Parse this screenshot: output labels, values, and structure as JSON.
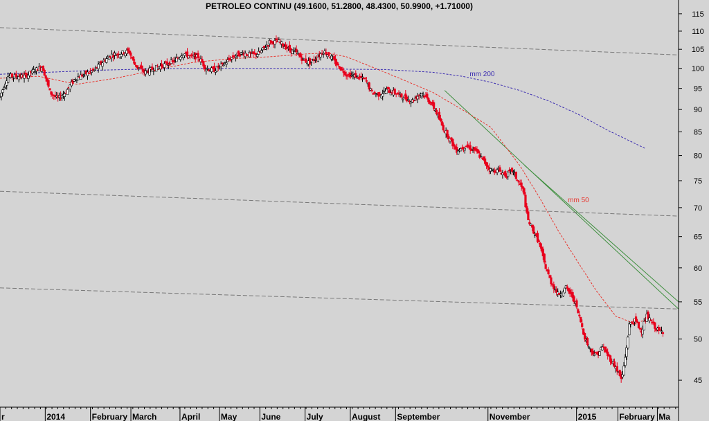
{
  "chart_data": {
    "type": "candlestick",
    "title": "PETROLEO CONTINU (49.1600, 51.2800, 48.4300, 50.9900, +1.71000)",
    "last_bar": {
      "open": 49.16,
      "high": 51.28,
      "low": 48.43,
      "close": 50.99,
      "change": 1.71
    },
    "scale": "log",
    "ylim": [
      42,
      116
    ],
    "yticks": [
      45,
      50,
      55,
      60,
      65,
      70,
      75,
      80,
      85,
      90,
      95,
      100,
      105,
      110,
      115
    ],
    "xlabels": [
      {
        "label": "r",
        "day": 0
      },
      {
        "label": "2014",
        "day": 47
      },
      {
        "label": "February",
        "day": 94
      },
      {
        "label": "March",
        "day": 136
      },
      {
        "label": "April",
        "day": 187
      },
      {
        "label": "May",
        "day": 228
      },
      {
        "label": "June",
        "day": 270
      },
      {
        "label": "July",
        "day": 317
      },
      {
        "label": "August",
        "day": 364
      },
      {
        "label": "September",
        "day": 411
      },
      {
        "label": "November",
        "day": 507
      },
      {
        "label": "2015",
        "day": 599
      },
      {
        "label": "February",
        "day": 642
      },
      {
        "label": "Ma",
        "day": 683
      }
    ],
    "price_path": [
      [
        0,
        93
      ],
      [
        8,
        98
      ],
      [
        16,
        98
      ],
      [
        26,
        98
      ],
      [
        36,
        99.5
      ],
      [
        44,
        100.5
      ],
      [
        52,
        94
      ],
      [
        60,
        92.5
      ],
      [
        68,
        94
      ],
      [
        78,
        97.5
      ],
      [
        88,
        98.5
      ],
      [
        98,
        99.5
      ],
      [
        108,
        102
      ],
      [
        116,
        103.5
      ],
      [
        126,
        104
      ],
      [
        134,
        104.5
      ],
      [
        140,
        101
      ],
      [
        150,
        99
      ],
      [
        160,
        100
      ],
      [
        172,
        101
      ],
      [
        182,
        102
      ],
      [
        190,
        104
      ],
      [
        198,
        103
      ],
      [
        206,
        103
      ],
      [
        214,
        100
      ],
      [
        222,
        99.5
      ],
      [
        232,
        101
      ],
      [
        242,
        103
      ],
      [
        252,
        104
      ],
      [
        262,
        103.5
      ],
      [
        270,
        104
      ],
      [
        280,
        107
      ],
      [
        290,
        107
      ],
      [
        300,
        105
      ],
      [
        308,
        104
      ],
      [
        316,
        102
      ],
      [
        322,
        101.5
      ],
      [
        330,
        103
      ],
      [
        336,
        104.5
      ],
      [
        342,
        103.5
      ],
      [
        350,
        101
      ],
      [
        360,
        98.5
      ],
      [
        370,
        98
      ],
      [
        380,
        97
      ],
      [
        386,
        94
      ],
      [
        394,
        93.5
      ],
      [
        402,
        94.5
      ],
      [
        410,
        94
      ],
      [
        418,
        93
      ],
      [
        428,
        92
      ],
      [
        438,
        94
      ],
      [
        446,
        92
      ],
      [
        452,
        90
      ],
      [
        460,
        86
      ],
      [
        466,
        84
      ],
      [
        474,
        81
      ],
      [
        484,
        82
      ],
      [
        494,
        81
      ],
      [
        502,
        79
      ],
      [
        510,
        77
      ],
      [
        518,
        77
      ],
      [
        526,
        76
      ],
      [
        532,
        77
      ],
      [
        538,
        75
      ],
      [
        544,
        73
      ],
      [
        548,
        68
      ],
      [
        554,
        66
      ],
      [
        560,
        64
      ],
      [
        566,
        60.5
      ],
      [
        572,
        58
      ],
      [
        580,
        56
      ],
      [
        588,
        57
      ],
      [
        596,
        55.5
      ],
      [
        604,
        52
      ],
      [
        608,
        50
      ],
      [
        614,
        48.5
      ],
      [
        620,
        48
      ],
      [
        626,
        49
      ],
      [
        634,
        47.5
      ],
      [
        640,
        46.5
      ],
      [
        646,
        45
      ],
      [
        650,
        48
      ],
      [
        654,
        52
      ],
      [
        660,
        52.5
      ],
      [
        666,
        51
      ],
      [
        672,
        53
      ],
      [
        678,
        52
      ],
      [
        684,
        51
      ],
      [
        690,
        51
      ]
    ],
    "series": [
      {
        "name": "mm 50",
        "color": "#e8352e",
        "x": [
          0,
          40,
          80,
          120,
          160,
          200,
          240,
          280,
          320,
          340,
          360,
          390,
          420,
          450,
          480,
          510,
          540,
          560,
          580,
          600,
          620,
          640,
          660,
          670
        ],
        "y": [
          97.5,
          98,
          96,
          97.5,
          99.5,
          101.5,
          102.5,
          103,
          103.8,
          104,
          103,
          100,
          97,
          94,
          90,
          86,
          78,
          72,
          66,
          61,
          56.5,
          53,
          52,
          52.5
        ]
      },
      {
        "name": "mm 200",
        "color": "#3a2bb0",
        "x": [
          0,
          50,
          100,
          150,
          200,
          250,
          300,
          350,
          400,
          450,
          480,
          510,
          540,
          570,
          600,
          630,
          670
        ],
        "y": [
          98.5,
          99,
          99.5,
          99.8,
          100,
          100,
          100,
          99.8,
          99.7,
          99,
          98,
          96.5,
          94.5,
          92,
          89,
          85.5,
          81.5
        ]
      }
    ],
    "trendlines": [
      {
        "color": "#3f8f3f",
        "x": [
          462,
          705
        ],
        "y": [
          94.5,
          54
        ]
      },
      {
        "color": "#3f8f3f",
        "x": [
          545,
          705
        ],
        "y": [
          78,
          55
        ]
      },
      {
        "color": "#777777",
        "style": "dashed",
        "x": [
          0,
          705
        ],
        "y": [
          111,
          103.5
        ]
      },
      {
        "color": "#777777",
        "style": "dashed",
        "x": [
          0,
          705
        ],
        "y": [
          73,
          68.5
        ]
      },
      {
        "color": "#777777",
        "style": "dashed",
        "x": [
          0,
          705
        ],
        "y": [
          57,
          54
        ]
      }
    ],
    "annotations": [
      {
        "text": "mm 200",
        "color": "#3a2bb0",
        "day": 488,
        "value": 98
      },
      {
        "text": "mm 50",
        "color": "#e8352e",
        "day": 590,
        "value": 71
      }
    ],
    "colors": {
      "up": "#000000",
      "down": "#e8001c",
      "background": "#d4d4d4"
    },
    "legend": "none",
    "grid": false
  }
}
